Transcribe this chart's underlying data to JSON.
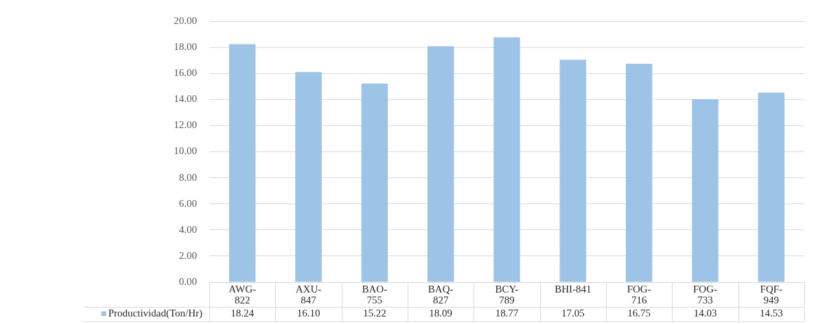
{
  "chart_data": {
    "type": "bar",
    "categories": [
      "AWG-822",
      "AXU-847",
      "BAO-755",
      "BAQ-827",
      "BCY-789",
      "BHI-841",
      "FOG-716",
      "FOG-733",
      "FQF-949"
    ],
    "series": [
      {
        "name": "Productividad(Ton/Hr)",
        "color": "#9dc3e6",
        "values": [
          18.24,
          16.1,
          15.22,
          18.09,
          18.77,
          17.05,
          16.75,
          14.03,
          14.53
        ],
        "value_labels": [
          "18.24",
          "16.10",
          "15.22",
          "18.09",
          "18.77",
          "17.05",
          "16.75",
          "14.03",
          "14.53"
        ]
      }
    ],
    "ylim": [
      0,
      20
    ],
    "yticks": [
      {
        "value": 0,
        "label": "0.00"
      },
      {
        "value": 2,
        "label": "2.00"
      },
      {
        "value": 4,
        "label": "4.00"
      },
      {
        "value": 6,
        "label": "6.00"
      },
      {
        "value": 8,
        "label": "8.00"
      },
      {
        "value": 10,
        "label": "10.00"
      },
      {
        "value": 12,
        "label": "12.00"
      },
      {
        "value": 14,
        "label": "14.00"
      },
      {
        "value": 16,
        "label": "16.00"
      },
      {
        "value": 18,
        "label": "18.00"
      },
      {
        "value": 20,
        "label": "20.00"
      }
    ],
    "grid": "y",
    "legend": "bottom"
  }
}
